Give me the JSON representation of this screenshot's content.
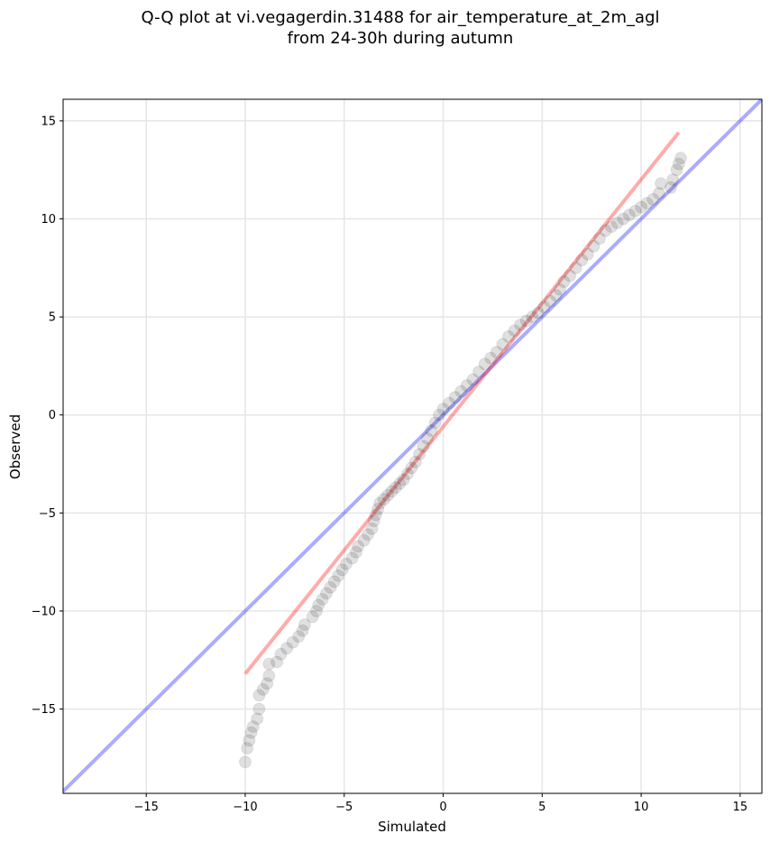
{
  "chart_data": {
    "type": "scatter",
    "title": "Q-Q plot at vi.vegagerdin.31488 for air_temperature_at_2m_agl\nfrom 24-30h during autumn",
    "xlabel": "Simulated",
    "ylabel": "Observed",
    "xlim": [
      -19.2,
      16.1
    ],
    "ylim": [
      -19.3,
      16.1
    ],
    "xticks": [
      -15,
      -10,
      -5,
      0,
      5,
      10,
      15
    ],
    "yticks": [
      -15,
      -10,
      -5,
      0,
      5,
      10,
      15
    ],
    "xtick_labels": [
      "−15",
      "−10",
      "−5",
      "0",
      "5",
      "10",
      "15"
    ],
    "ytick_labels": [
      "−15",
      "−10",
      "−5",
      "0",
      "5",
      "10",
      "15"
    ],
    "grid": true,
    "colors": {
      "points": "#000000",
      "identity_line": "#0000ff",
      "fit_line": "#ff0000",
      "grid": "#e6e6e6"
    },
    "reference_lines": [
      {
        "kind": "identity",
        "x": [
          -19.2,
          16.1
        ],
        "y": [
          -19.2,
          16.1
        ]
      },
      {
        "kind": "fit",
        "x": [
          -10.0,
          11.9
        ],
        "y": [
          -13.2,
          14.4
        ]
      }
    ],
    "points": [
      {
        "x": -10.0,
        "y": -17.7
      },
      {
        "x": -9.9,
        "y": -17.0
      },
      {
        "x": -9.8,
        "y": -16.6
      },
      {
        "x": -9.7,
        "y": -16.2
      },
      {
        "x": -9.6,
        "y": -15.9
      },
      {
        "x": -9.4,
        "y": -15.5
      },
      {
        "x": -9.3,
        "y": -15.0
      },
      {
        "x": -9.3,
        "y": -14.3
      },
      {
        "x": -9.1,
        "y": -14.0
      },
      {
        "x": -8.9,
        "y": -13.7
      },
      {
        "x": -8.8,
        "y": -13.3
      },
      {
        "x": -8.8,
        "y": -12.7
      },
      {
        "x": -8.4,
        "y": -12.6
      },
      {
        "x": -8.2,
        "y": -12.2
      },
      {
        "x": -7.9,
        "y": -11.9
      },
      {
        "x": -7.6,
        "y": -11.6
      },
      {
        "x": -7.3,
        "y": -11.3
      },
      {
        "x": -7.1,
        "y": -11.0
      },
      {
        "x": -7.0,
        "y": -10.7
      },
      {
        "x": -6.6,
        "y": -10.3
      },
      {
        "x": -6.4,
        "y": -10.0
      },
      {
        "x": -6.3,
        "y": -9.7
      },
      {
        "x": -6.1,
        "y": -9.4
      },
      {
        "x": -5.9,
        "y": -9.1
      },
      {
        "x": -5.7,
        "y": -8.8
      },
      {
        "x": -5.5,
        "y": -8.5
      },
      {
        "x": -5.3,
        "y": -8.2
      },
      {
        "x": -5.1,
        "y": -7.9
      },
      {
        "x": -4.9,
        "y": -7.6
      },
      {
        "x": -4.6,
        "y": -7.3
      },
      {
        "x": -4.4,
        "y": -7.0
      },
      {
        "x": -4.3,
        "y": -6.7
      },
      {
        "x": -4.0,
        "y": -6.4
      },
      {
        "x": -3.8,
        "y": -6.1
      },
      {
        "x": -3.6,
        "y": -5.8
      },
      {
        "x": -3.5,
        "y": -5.4
      },
      {
        "x": -3.4,
        "y": -5.1
      },
      {
        "x": -3.3,
        "y": -4.8
      },
      {
        "x": -3.2,
        "y": -4.5
      },
      {
        "x": -3.0,
        "y": -4.3
      },
      {
        "x": -2.8,
        "y": -4.1
      },
      {
        "x": -2.6,
        "y": -3.9
      },
      {
        "x": -2.4,
        "y": -3.7
      },
      {
        "x": -2.2,
        "y": -3.5
      },
      {
        "x": -2.0,
        "y": -3.3
      },
      {
        "x": -1.8,
        "y": -3.0
      },
      {
        "x": -1.6,
        "y": -2.7
      },
      {
        "x": -1.4,
        "y": -2.4
      },
      {
        "x": -1.2,
        "y": -2.0
      },
      {
        "x": -1.0,
        "y": -1.6
      },
      {
        "x": -0.8,
        "y": -1.2
      },
      {
        "x": -0.6,
        "y": -0.8
      },
      {
        "x": -0.4,
        "y": -0.4
      },
      {
        "x": -0.2,
        "y": 0.0
      },
      {
        "x": 0.0,
        "y": 0.3
      },
      {
        "x": 0.3,
        "y": 0.6
      },
      {
        "x": 0.6,
        "y": 0.9
      },
      {
        "x": 0.9,
        "y": 1.2
      },
      {
        "x": 1.2,
        "y": 1.5
      },
      {
        "x": 1.5,
        "y": 1.8
      },
      {
        "x": 1.8,
        "y": 2.2
      },
      {
        "x": 2.1,
        "y": 2.6
      },
      {
        "x": 2.4,
        "y": 2.9
      },
      {
        "x": 2.7,
        "y": 3.2
      },
      {
        "x": 3.0,
        "y": 3.6
      },
      {
        "x": 3.3,
        "y": 4.0
      },
      {
        "x": 3.6,
        "y": 4.3
      },
      {
        "x": 3.9,
        "y": 4.6
      },
      {
        "x": 4.2,
        "y": 4.8
      },
      {
        "x": 4.5,
        "y": 5.0
      },
      {
        "x": 4.8,
        "y": 5.2
      },
      {
        "x": 5.1,
        "y": 5.5
      },
      {
        "x": 5.4,
        "y": 5.8
      },
      {
        "x": 5.7,
        "y": 6.1
      },
      {
        "x": 5.9,
        "y": 6.4
      },
      {
        "x": 6.1,
        "y": 6.8
      },
      {
        "x": 6.4,
        "y": 7.1
      },
      {
        "x": 6.7,
        "y": 7.5
      },
      {
        "x": 7.0,
        "y": 7.9
      },
      {
        "x": 7.3,
        "y": 8.2
      },
      {
        "x": 7.6,
        "y": 8.6
      },
      {
        "x": 7.9,
        "y": 9.0
      },
      {
        "x": 8.2,
        "y": 9.4
      },
      {
        "x": 8.5,
        "y": 9.6
      },
      {
        "x": 8.8,
        "y": 9.8
      },
      {
        "x": 9.1,
        "y": 10.0
      },
      {
        "x": 9.4,
        "y": 10.2
      },
      {
        "x": 9.7,
        "y": 10.4
      },
      {
        "x": 10.0,
        "y": 10.6
      },
      {
        "x": 10.3,
        "y": 10.8
      },
      {
        "x": 10.6,
        "y": 11.0
      },
      {
        "x": 10.9,
        "y": 11.3
      },
      {
        "x": 11.0,
        "y": 11.8
      },
      {
        "x": 11.5,
        "y": 11.6
      },
      {
        "x": 11.6,
        "y": 12.0
      },
      {
        "x": 11.8,
        "y": 12.5
      },
      {
        "x": 11.9,
        "y": 12.8
      },
      {
        "x": 12.0,
        "y": 13.1
      }
    ]
  }
}
